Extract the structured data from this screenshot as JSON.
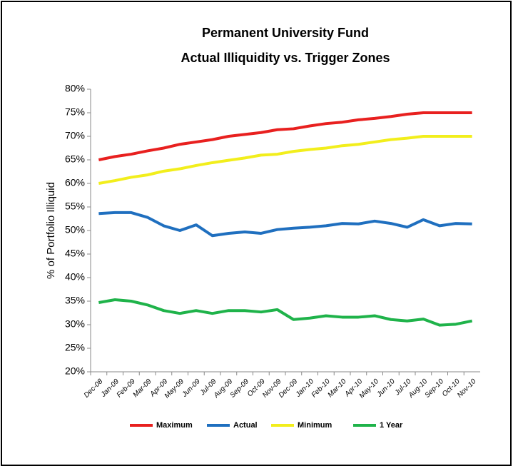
{
  "chart_data": {
    "type": "line",
    "title": "Permanent University Fund",
    "subtitle": "Actual Illiquidity vs. Trigger Zones",
    "y_label": "% of Portfolio Illiquid",
    "categories": [
      "Dec-08",
      "Jan-09",
      "Feb-09",
      "Mar-09",
      "Apr-09",
      "May-09",
      "Jun-09",
      "Jul-09",
      "Aug-09",
      "Sep-09",
      "Oct-09",
      "Nov-09",
      "Dec-09",
      "Jan-10",
      "Feb-10",
      "Mar-10",
      "Apr-10",
      "May-10",
      "Jun-10",
      "Jul-10",
      "Aug-10",
      "Sep-10",
      "Oct-10",
      "Nov-10"
    ],
    "series": [
      {
        "name": "Maximum",
        "color": "#e8201f",
        "values": [
          65,
          65.7,
          66.2,
          66.9,
          67.5,
          68.3,
          68.8,
          69.3,
          70.0,
          70.4,
          70.8,
          71.4,
          71.6,
          72.2,
          72.7,
          73.0,
          73.5,
          73.8,
          74.2,
          74.7,
          75,
          75,
          75,
          75
        ]
      },
      {
        "name": "Actual",
        "color": "#1f6fbf",
        "values": [
          53.6,
          53.8,
          53.8,
          52.8,
          51.0,
          50.0,
          51.2,
          48.9,
          49.4,
          49.7,
          49.4,
          50.2,
          50.5,
          50.7,
          51.0,
          51.5,
          51.4,
          52.0,
          51.5,
          50.7,
          52.3,
          51.0,
          51.5,
          51.4
        ]
      },
      {
        "name": "Minimum",
        "color": "#f2ee1c",
        "values": [
          60,
          60.6,
          61.3,
          61.8,
          62.6,
          63.1,
          63.8,
          64.4,
          64.9,
          65.4,
          66.0,
          66.2,
          66.8,
          67.2,
          67.5,
          68.0,
          68.3,
          68.8,
          69.3,
          69.6,
          70,
          70,
          70,
          70
        ]
      },
      {
        "name": "1 Year",
        "color": "#1fb34a",
        "values": [
          34.7,
          35.3,
          35.0,
          34.2,
          33.0,
          32.4,
          33.0,
          32.4,
          33.0,
          33.0,
          32.7,
          33.2,
          31.1,
          31.4,
          31.9,
          31.6,
          31.6,
          31.9,
          31.1,
          30.8,
          31.2,
          29.9,
          30.1,
          30.8
        ]
      }
    ],
    "ylim": [
      20,
      80
    ],
    "yticks": [
      {
        "value": 20,
        "label": "20%"
      },
      {
        "value": 25,
        "label": "25%"
      },
      {
        "value": 30,
        "label": "30%"
      },
      {
        "value": 35,
        "label": "35%"
      },
      {
        "value": 40,
        "label": "40%"
      },
      {
        "value": 45,
        "label": "45%"
      },
      {
        "value": 50,
        "label": "50%"
      },
      {
        "value": 55,
        "label": "55%"
      },
      {
        "value": 60,
        "label": "60%"
      },
      {
        "value": 65,
        "label": "65%"
      },
      {
        "value": 70,
        "label": "70%"
      },
      {
        "value": 75,
        "label": "75%"
      },
      {
        "value": 80,
        "label": "80%"
      }
    ],
    "grid": false,
    "legend": "bottom"
  }
}
